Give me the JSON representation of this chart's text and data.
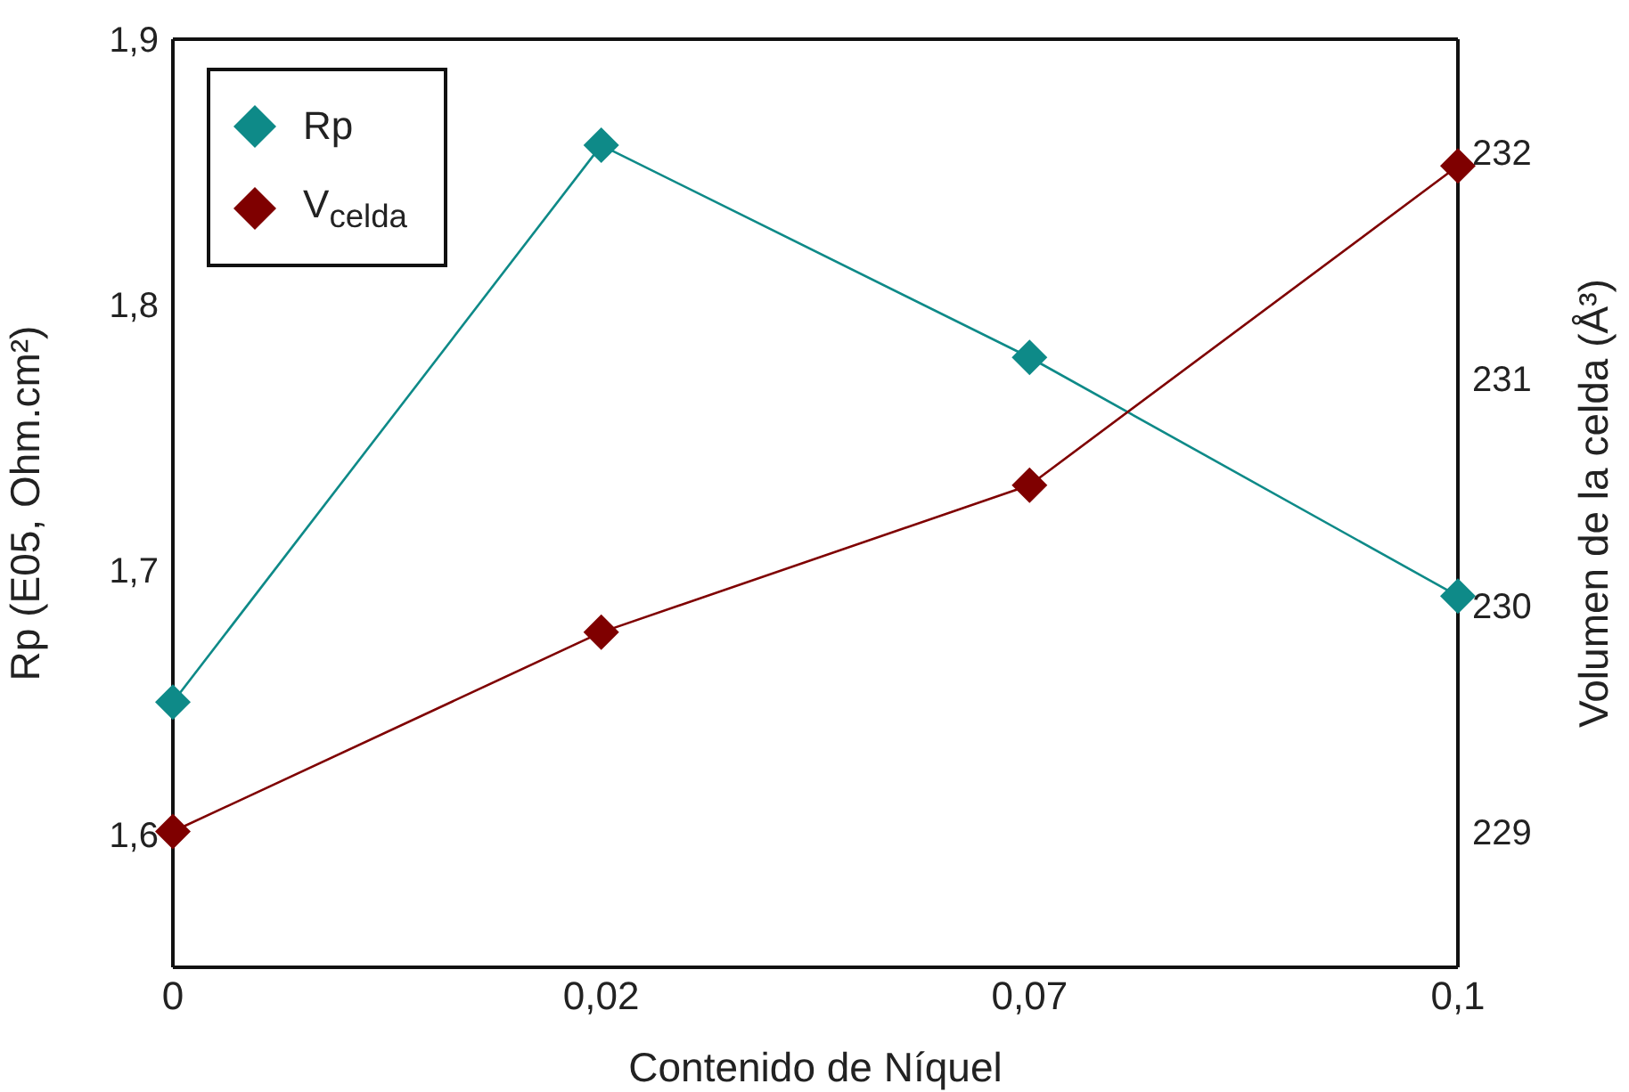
{
  "chart_data": {
    "type": "line",
    "categories": [
      "0",
      "0,02",
      "0,07",
      "0,1"
    ],
    "xlabel": "Contenido de Níquel",
    "ylabel": "Rp (E05, Ohm.cm²)",
    "y2label": "Volumen de la celda (Å³)",
    "series": [
      {
        "name": "Rp",
        "color": "#0e8a88",
        "values": [
          1.65,
          1.86,
          1.78,
          1.69
        ]
      },
      {
        "name": "V$_{celda}$",
        "color": "#7f0000",
        "values": [
          229.0,
          229.88,
          230.53,
          231.94
        ],
        "axis": "y2"
      }
    ],
    "ylim": [
      1.55,
      1.9
    ],
    "yticks": [
      {
        "value": 1.6,
        "label": "1,6"
      },
      {
        "value": 1.7,
        "label": "1,7"
      },
      {
        "value": 1.8,
        "label": "1,8"
      },
      {
        "value": 1.9,
        "label": "1,9"
      }
    ],
    "y2lim": [
      228.4,
      232.5
    ],
    "y2ticks": [
      229,
      230,
      231,
      232
    ],
    "marker": "diamond",
    "line_style": "solid",
    "grid": false,
    "legend": "top left"
  }
}
